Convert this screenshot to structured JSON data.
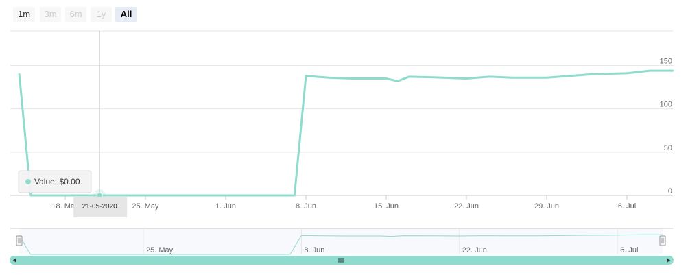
{
  "range_selector": {
    "buttons": [
      {
        "label": "1m",
        "state": "normal"
      },
      {
        "label": "3m",
        "state": "disabled"
      },
      {
        "label": "6m",
        "state": "disabled"
      },
      {
        "label": "1y",
        "state": "disabled"
      },
      {
        "label": "All",
        "state": "active"
      }
    ]
  },
  "tooltip": {
    "text": "Value: $0.00"
  },
  "crosshair_label": "21-05-2020",
  "navigator": {
    "xticks": [
      "25. May",
      "8. Jun",
      "22. Jun",
      "6. Jul"
    ],
    "left_handle_icon": "grip-icon",
    "right_handle_icon": "grip-icon",
    "scroll_left_icon": "arrow-left-icon",
    "scroll_right_icon": "arrow-right-icon",
    "scroll_grip_icon": "grip-icon"
  },
  "colors": {
    "series": "#8fdbcd",
    "grid": "#e6e6e6",
    "navigator_mask": "rgba(102,133,194,0.05)",
    "scrollbar": "#8fdbcd"
  },
  "chart_data": {
    "type": "line",
    "xaxis_type": "datetime",
    "xticks": [
      "18. May",
      "25. May",
      "1. Jun",
      "8. Jun",
      "15. Jun",
      "22. Jun",
      "29. Jun",
      "6. Jul"
    ],
    "yticks": [
      0,
      50,
      100,
      150
    ],
    "ylim": [
      0,
      190
    ],
    "grid": true,
    "series": [
      {
        "x": [
          "2020-05-14",
          "2020-05-15",
          "2020-05-18",
          "2020-05-21",
          "2020-05-25",
          "2020-06-01",
          "2020-06-06",
          "2020-06-07",
          "2020-06-08",
          "2020-06-10",
          "2020-06-12",
          "2020-06-15",
          "2020-06-16",
          "2020-06-17",
          "2020-06-20",
          "2020-06-22",
          "2020-06-24",
          "2020-06-26",
          "2020-06-29",
          "2020-07-01",
          "2020-07-03",
          "2020-07-06",
          "2020-07-08",
          "2020-07-10"
        ],
        "y": [
          140,
          0,
          0,
          0,
          0,
          0,
          0,
          0,
          138,
          136,
          135,
          135,
          132,
          137,
          136,
          135,
          137,
          136,
          136,
          138,
          140,
          141,
          144,
          144
        ]
      }
    ]
  }
}
